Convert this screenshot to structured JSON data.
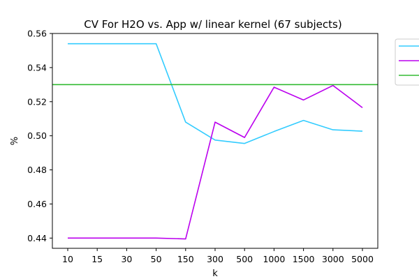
{
  "chart_data": {
    "type": "line",
    "title": "CV For H2O vs. App w/ linear kernel (67 subjects)",
    "xlabel": "k",
    "ylabel": "%",
    "categories": [
      "10",
      "15",
      "30",
      "50",
      "150",
      "300",
      "500",
      "1000",
      "1500",
      "3000",
      "5000"
    ],
    "ylim": [
      0.434,
      0.56
    ],
    "yticks": [
      "0.44",
      "0.46",
      "0.48",
      "0.50",
      "0.52",
      "0.54",
      "0.56"
    ],
    "grid": false,
    "legend_position": "upper right outside",
    "series": [
      {
        "color": "#33ccff",
        "values": [
          0.554,
          0.554,
          0.554,
          0.554,
          0.508,
          0.4975,
          0.4955,
          0.5025,
          0.509,
          0.5035,
          0.5027
        ]
      },
      {
        "color": "#bb00ee",
        "values": [
          0.44,
          0.44,
          0.44,
          0.44,
          0.4395,
          0.508,
          0.499,
          0.5285,
          0.521,
          0.5295,
          0.5165
        ]
      },
      {
        "color": "#33bb33",
        "values": [
          0.53,
          0.53,
          0.53,
          0.53,
          0.53,
          0.53,
          0.53,
          0.53,
          0.53,
          0.53,
          0.53
        ]
      }
    ]
  }
}
